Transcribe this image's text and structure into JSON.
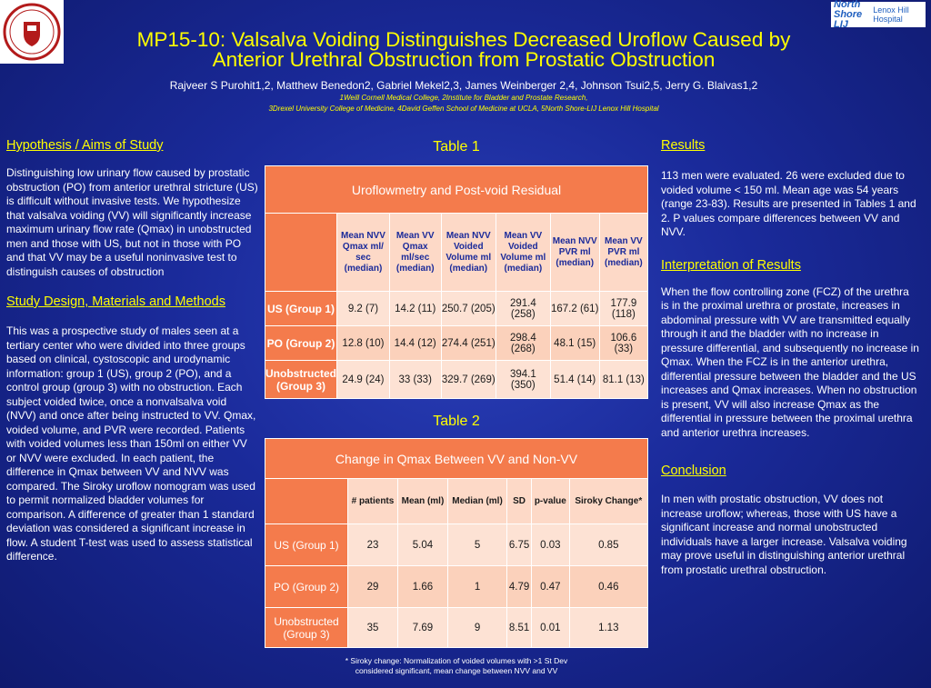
{
  "header": {
    "title_line1": "MP15-10: Valsalva Voiding Distinguishes Decreased Uroflow Caused by",
    "title_line2": "Anterior Urethral Obstruction from Prostatic Obstruction",
    "authors": "Rajveer S Purohit1,2, Matthew Benedon2, Gabriel Mekel2,3, James Weinberger 2,4, Johnson Tsui2,5, Jerry G. Blaivas1,2",
    "affil_line1": "1Weill Cornell Medical College, 2Institute for Bladder and Prostate Research,",
    "affil_line2": "3Drexel University College of Medicine, 4David Geffen School of Medicine at UCLA, 5North Shore-LIJ Lenox Hill Hospital",
    "logo_right_main": "North Shore LIJ",
    "logo_right_sub": "Lenox Hill Hospital"
  },
  "left": {
    "hyp_heading": "Hypothesis / Aims of Study",
    "hyp_text": "Distinguishing low urinary flow caused by prostatic obstruction (PO) from anterior urethral stricture (US) is difficult without invasive tests.  We hypothesize that valsalva voiding (VV) will significantly increase maximum urinary flow rate (Qmax) in unobstructed men and those with US, but not in those with PO and that VV may be a useful noninvasive test to distinguish causes of obstruction",
    "design_heading": "Study Design, Materials and Methods",
    "design_text": "This was a prospective study of males seen at a tertiary center who were divided into three groups based on clinical, cystoscopic and urodynamic information: group 1 (US), group 2 (PO), and a control group (group 3) with no obstruction. Each subject voided twice, once a nonvalsalva void (NVV) and once after being instructed to VV. Qmax, voided volume, and PVR were recorded. Patients with voided volumes less than 150ml on either VV or NVV were excluded. In each patient, the difference in Qmax between VV and NVV was compared. The Siroky uroflow nomogram was used to permit normalized bladder volumes for comparison. A difference of greater than 1 standard deviation was considered a significant increase in flow. A student T-test was used to assess statistical difference."
  },
  "table1": {
    "caption": "Table 1",
    "title": "Uroflowmetry and Post-void Residual",
    "columns": [
      "Mean NVV Qmax ml/ sec (median)",
      "Mean VV Qmax ml/sec (median)",
      "Mean NVV Voided Volume ml (median)",
      "Mean VV Voided Volume ml (median)",
      "Mean NVV PVR ml (median)",
      "Mean VV PVR ml (median)"
    ],
    "rows": [
      {
        "label": "US (Group 1)",
        "cells": [
          "9.2 (7)",
          "14.2 (11)",
          "250.7 (205)",
          "291.4 (258)",
          "167.2 (61)",
          "177.9 (118)"
        ]
      },
      {
        "label": "PO (Group 2)",
        "cells": [
          "12.8 (10)",
          "14.4 (12)",
          "274.4 (251)",
          "298.4 (268)",
          "48.1 (15)",
          "106.6 (33)"
        ]
      },
      {
        "label": "Unobstructed (Group 3)",
        "cells": [
          "24.9 (24)",
          "33 (33)",
          "329.7 (269)",
          "394.1 (350)",
          "51.4 (14)",
          "81.1 (13)"
        ]
      }
    ]
  },
  "table2": {
    "caption": "Table 2",
    "title": "Change in Qmax Between VV and Non-VV",
    "columns": [
      "# patients",
      "Mean (ml)",
      "Median (ml)",
      "SD",
      "p-value",
      "Siroky Change*"
    ],
    "rows": [
      {
        "label": "US (Group 1)",
        "cells": [
          "23",
          "5.04",
          "5",
          "6.75",
          "0.03",
          "0.85"
        ]
      },
      {
        "label": "PO (Group 2)",
        "cells": [
          "29",
          "1.66",
          "1",
          "4.79",
          "0.47",
          "0.46"
        ]
      },
      {
        "label": "Unobstructed (Group 3)",
        "cells": [
          "35",
          "7.69",
          "9",
          "8.51",
          "0.01",
          "1.13"
        ]
      }
    ],
    "footnote_line1": "* Siroky change: Normalization of voided volumes with >1 St Dev",
    "footnote_line2": "considered significant, mean change between NVV and VV"
  },
  "right": {
    "results_heading": "Results",
    "results_text": "113 men were evaluated. 26 were excluded due to voided volume < 150 ml. Mean age was 54 years (range 23-83). Results are presented in Tables 1 and 2. P values compare differences between VV and NVV.",
    "interp_heading": "Interpretation of Results",
    "interp_text": "When the flow controlling zone (FCZ) of the urethra is in the proximal urethra or prostate, increases in abdominal pressure with VV are transmitted equally through it and the bladder with no increase in pressure differential,  and subsequently no increase in Qmax. When the FCZ is in the anterior urethra, differential pressure between the bladder and the US increases and Qmax increases. When no obstruction is present, VV will also increase Qmax as the differential in pressure between the proximal urethra and anterior urethra increases.",
    "concl_heading": "Conclusion",
    "concl_text": "In men with prostatic obstruction, VV does not increase uroflow; whereas, those with US have a significant increase and normal unobstructed individuals have a larger increase. Valsalva voiding may prove useful in distinguishing anterior urethral from prostatic urethral obstruction."
  },
  "colors": {
    "background": "#1a2a9a",
    "title": "#ffff00",
    "table_header": "#f47b4c",
    "table_cell_light": "#fde2d4",
    "table_cell_mid": "#fbd1bb"
  }
}
